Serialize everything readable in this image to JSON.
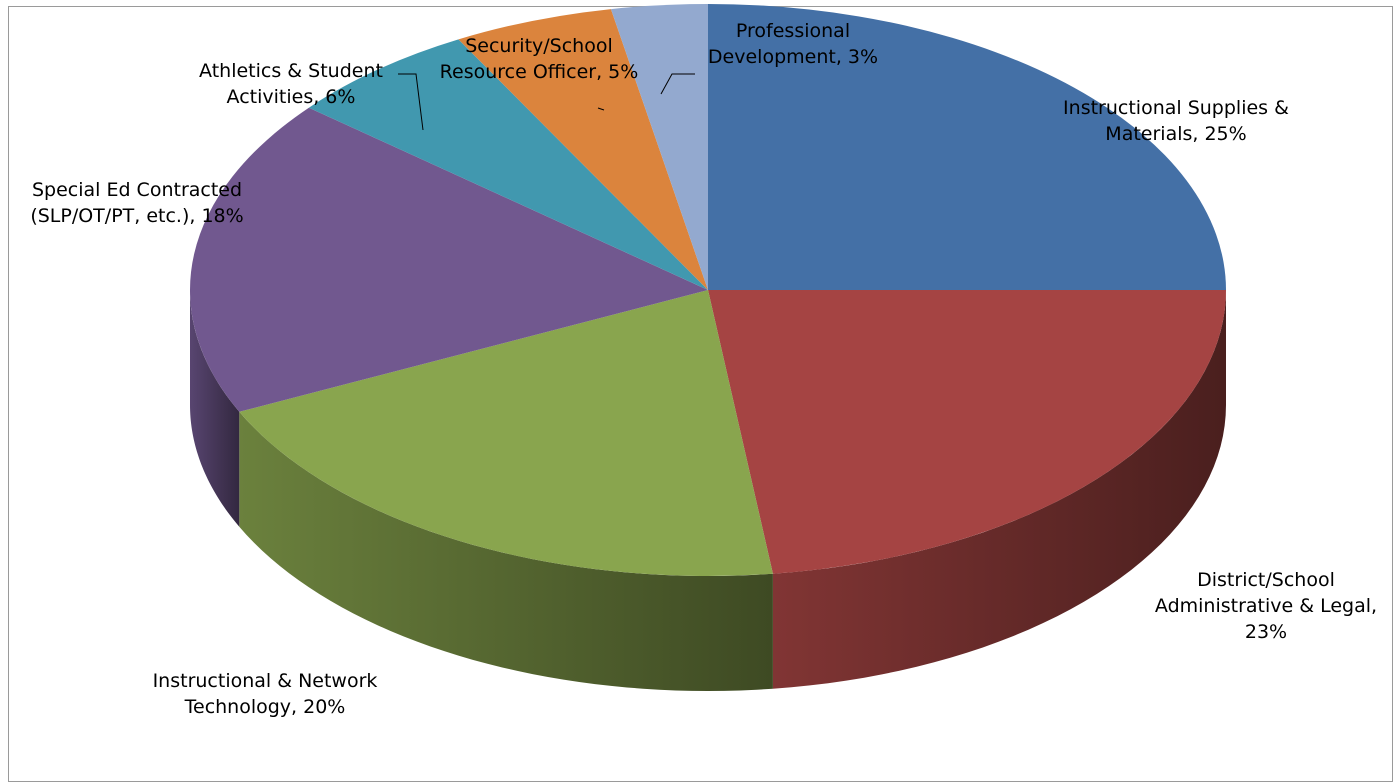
{
  "chart_data": {
    "type": "pie",
    "style": "3d",
    "title": "",
    "slices": [
      {
        "name": "Instructional Supplies & Materials",
        "value": 25,
        "label_lines": [
          "Instructional Supplies &",
          "Materials, 25%"
        ],
        "color": "#4470a6"
      },
      {
        "name": "District/School Administrative & Legal",
        "value": 23,
        "label_lines": [
          "District/School",
          "Administrative & Legal,",
          "23%"
        ],
        "color": "#a54443"
      },
      {
        "name": "Instructional & Network Technology",
        "value": 20,
        "label_lines": [
          "Instructional & Network",
          "Technology, 20%"
        ],
        "color": "#89a54e"
      },
      {
        "name": "Special Ed Contracted (SLP/OT/PT, etc.)",
        "value": 18,
        "label_lines": [
          "Special Ed Contracted",
          "(SLP/OT/PT, etc.), 18%"
        ],
        "color": "#71588f"
      },
      {
        "name": "Athletics & Student Activities",
        "value": 6,
        "label_lines": [
          "Athletics & Student",
          "Activities, 6%"
        ],
        "color": "#4198af"
      },
      {
        "name": "Security/School Resource Officer",
        "value": 5,
        "label_lines": [
          "Security/School",
          "Resource Officer, 5%"
        ],
        "color": "#db843d"
      },
      {
        "name": "Professional Development",
        "value": 3,
        "label_lines": [
          "Professional",
          "Development, 3%"
        ],
        "color": "#93a9cf"
      }
    ],
    "legend": "none",
    "start_position": "top",
    "direction": "clockwise"
  }
}
